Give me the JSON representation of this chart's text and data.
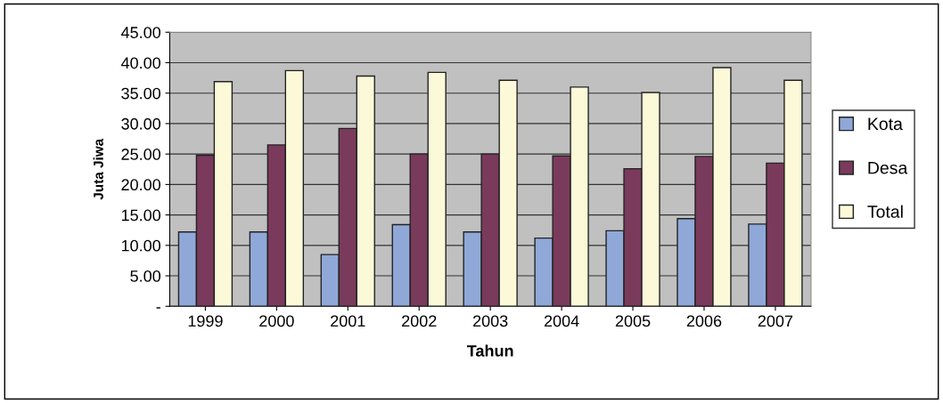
{
  "chart_data": {
    "type": "bar",
    "xlabel": "Tahun",
    "ylabel": "Juta Jiwa",
    "categories": [
      "1999",
      "2000",
      "2001",
      "2002",
      "2003",
      "2004",
      "2005",
      "2006",
      "2007"
    ],
    "series": [
      {
        "name": "Kota",
        "color": "#8fa8d8",
        "values": [
          12.2,
          12.2,
          8.5,
          13.4,
          12.2,
          11.2,
          12.4,
          14.4,
          13.5
        ]
      },
      {
        "name": "Desa",
        "color": "#7a3a5c",
        "values": [
          24.8,
          26.5,
          29.2,
          25.0,
          25.0,
          24.7,
          22.6,
          24.6,
          23.5
        ]
      },
      {
        "name": "Total",
        "color": "#fbf9d8",
        "values": [
          36.9,
          38.7,
          37.8,
          38.4,
          37.1,
          36.0,
          35.1,
          39.2,
          37.1
        ]
      }
    ],
    "ylim": [
      0,
      45
    ],
    "yticks": [
      {
        "value": 0,
        "label": "-"
      },
      {
        "value": 5,
        "label": "5.00"
      },
      {
        "value": 10,
        "label": "10.00"
      },
      {
        "value": 15,
        "label": "15.00"
      },
      {
        "value": 20,
        "label": "20.00"
      },
      {
        "value": 25,
        "label": "25.00"
      },
      {
        "value": 30,
        "label": "30.00"
      },
      {
        "value": 35,
        "label": "35.00"
      },
      {
        "value": 40,
        "label": "40.00"
      },
      {
        "value": 45,
        "label": "45.00"
      }
    ],
    "grid": "y",
    "legend": "right"
  }
}
